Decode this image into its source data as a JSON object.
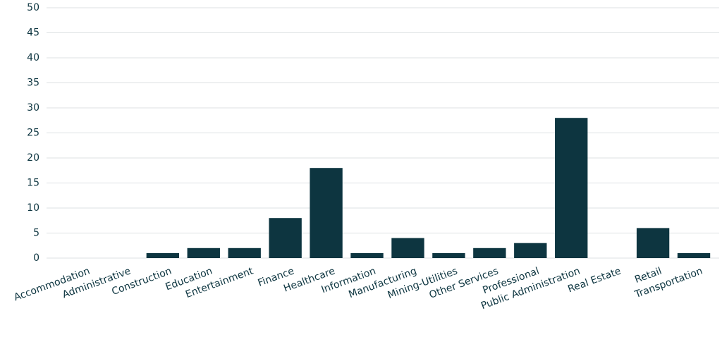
{
  "chart_data": {
    "type": "bar",
    "categories": [
      "Accommodation",
      "Administrative",
      "Construction",
      "Education",
      "Entertainment",
      "Finance",
      "Healthcare",
      "Information",
      "Manufacturing",
      "Mining-Utilities",
      "Other Services",
      "Professional",
      "Public Administration",
      "Real Estate",
      "Retail",
      "Transportation"
    ],
    "values": [
      0,
      0,
      1,
      2,
      2,
      8,
      18,
      1,
      4,
      1,
      2,
      3,
      28,
      0,
      6,
      1
    ],
    "color": "#0d3540",
    "ylim": [
      0,
      50
    ],
    "yticks": [
      0,
      5,
      10,
      15,
      20,
      25,
      30,
      35,
      40,
      45,
      50
    ],
    "grid": true
  }
}
